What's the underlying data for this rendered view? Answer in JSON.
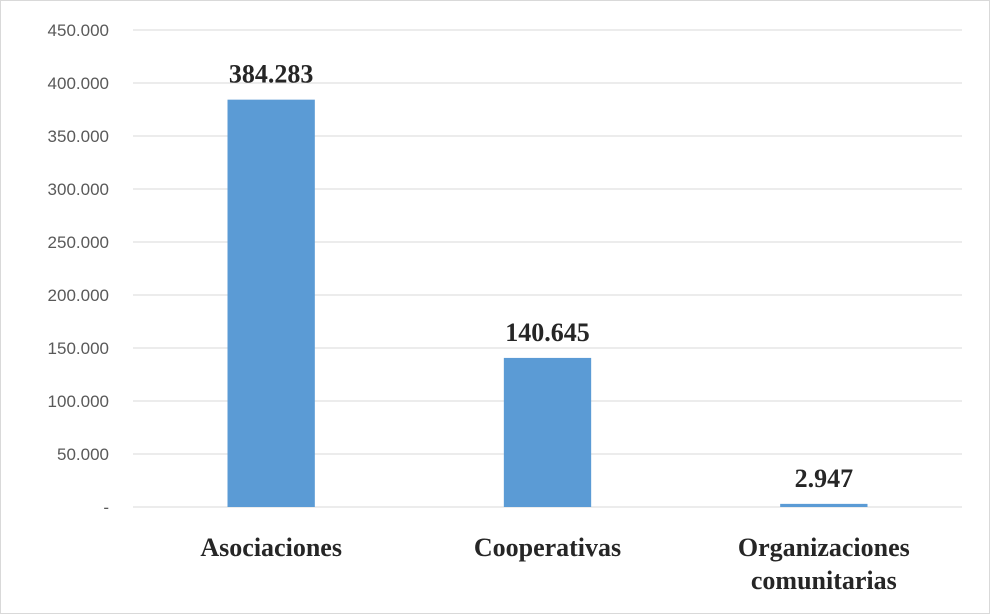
{
  "chart_data": {
    "type": "bar",
    "categories": [
      "Asociaciones",
      "Cooperativas",
      "Organizaciones comunitarias"
    ],
    "values": [
      384283,
      140645,
      2947
    ],
    "value_labels": [
      "384.283",
      "140.645",
      "2.947"
    ],
    "color": "#5b9bd5",
    "ylim": [
      0,
      450000
    ],
    "yticks": [
      {
        "value": 0,
        "label": "-"
      },
      {
        "value": 50000,
        "label": "50.000"
      },
      {
        "value": 100000,
        "label": "100.000"
      },
      {
        "value": 150000,
        "label": "150.000"
      },
      {
        "value": 200000,
        "label": "200.000"
      },
      {
        "value": 250000,
        "label": "250.000"
      },
      {
        "value": 300000,
        "label": "300.000"
      },
      {
        "value": 350000,
        "label": "350.000"
      },
      {
        "value": 400000,
        "label": "400.000"
      },
      {
        "value": 450000,
        "label": "450.000"
      }
    ],
    "grid": true
  }
}
